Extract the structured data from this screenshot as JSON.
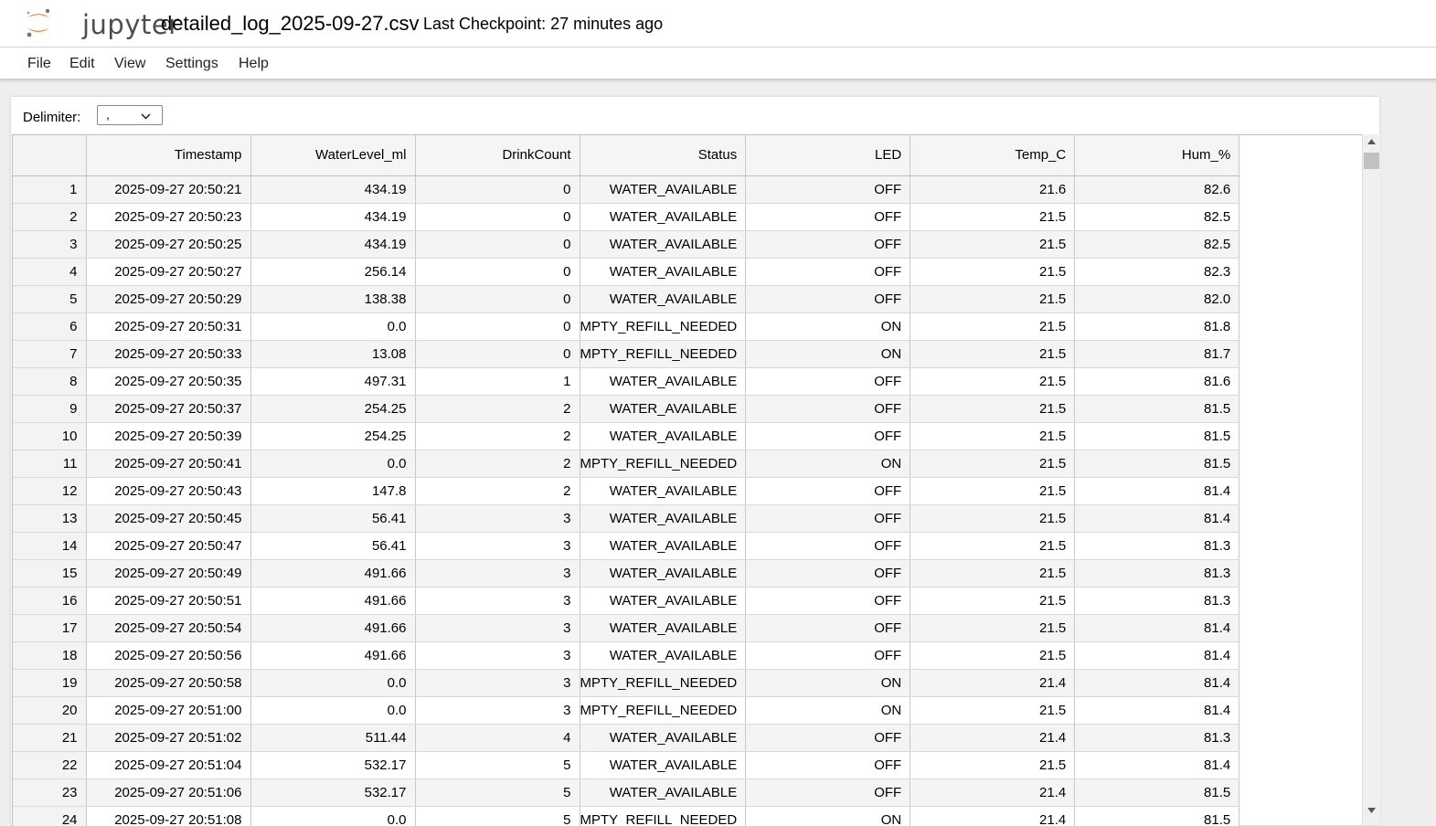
{
  "app": {
    "logo_text": "jupyter",
    "title": "detailed_log_2025-09-27.csv",
    "checkpoint": "Last Checkpoint: 27 minutes ago"
  },
  "menu": [
    "File",
    "Edit",
    "View",
    "Settings",
    "Help"
  ],
  "toolbar": {
    "delimiter_label": "Delimiter:",
    "delimiter_value": ","
  },
  "table": {
    "headers": [
      "Timestamp",
      "WaterLevel_ml",
      "DrinkCount",
      "Status",
      "LED",
      "Temp_C",
      "Hum_%"
    ],
    "rows": [
      [
        "1",
        "2025-09-27 20:50:21",
        "434.19",
        "0",
        "WATER_AVAILABLE",
        "OFF",
        "21.6",
        "82.6"
      ],
      [
        "2",
        "2025-09-27 20:50:23",
        "434.19",
        "0",
        "WATER_AVAILABLE",
        "OFF",
        "21.5",
        "82.5"
      ],
      [
        "3",
        "2025-09-27 20:50:25",
        "434.19",
        "0",
        "WATER_AVAILABLE",
        "OFF",
        "21.5",
        "82.5"
      ],
      [
        "4",
        "2025-09-27 20:50:27",
        "256.14",
        "0",
        "WATER_AVAILABLE",
        "OFF",
        "21.5",
        "82.3"
      ],
      [
        "5",
        "2025-09-27 20:50:29",
        "138.38",
        "0",
        "WATER_AVAILABLE",
        "OFF",
        "21.5",
        "82.0"
      ],
      [
        "6",
        "2025-09-27 20:50:31",
        "0.0",
        "0",
        "MPTY_REFILL_NEEDED",
        "ON",
        "21.5",
        "81.8"
      ],
      [
        "7",
        "2025-09-27 20:50:33",
        "13.08",
        "0",
        "MPTY_REFILL_NEEDED",
        "ON",
        "21.5",
        "81.7"
      ],
      [
        "8",
        "2025-09-27 20:50:35",
        "497.31",
        "1",
        "WATER_AVAILABLE",
        "OFF",
        "21.5",
        "81.6"
      ],
      [
        "9",
        "2025-09-27 20:50:37",
        "254.25",
        "2",
        "WATER_AVAILABLE",
        "OFF",
        "21.5",
        "81.5"
      ],
      [
        "10",
        "2025-09-27 20:50:39",
        "254.25",
        "2",
        "WATER_AVAILABLE",
        "OFF",
        "21.5",
        "81.5"
      ],
      [
        "11",
        "2025-09-27 20:50:41",
        "0.0",
        "2",
        "MPTY_REFILL_NEEDED",
        "ON",
        "21.5",
        "81.5"
      ],
      [
        "12",
        "2025-09-27 20:50:43",
        "147.8",
        "2",
        "WATER_AVAILABLE",
        "OFF",
        "21.5",
        "81.4"
      ],
      [
        "13",
        "2025-09-27 20:50:45",
        "56.41",
        "3",
        "WATER_AVAILABLE",
        "OFF",
        "21.5",
        "81.4"
      ],
      [
        "14",
        "2025-09-27 20:50:47",
        "56.41",
        "3",
        "WATER_AVAILABLE",
        "OFF",
        "21.5",
        "81.3"
      ],
      [
        "15",
        "2025-09-27 20:50:49",
        "491.66",
        "3",
        "WATER_AVAILABLE",
        "OFF",
        "21.5",
        "81.3"
      ],
      [
        "16",
        "2025-09-27 20:50:51",
        "491.66",
        "3",
        "WATER_AVAILABLE",
        "OFF",
        "21.5",
        "81.3"
      ],
      [
        "17",
        "2025-09-27 20:50:54",
        "491.66",
        "3",
        "WATER_AVAILABLE",
        "OFF",
        "21.5",
        "81.4"
      ],
      [
        "18",
        "2025-09-27 20:50:56",
        "491.66",
        "3",
        "WATER_AVAILABLE",
        "OFF",
        "21.5",
        "81.4"
      ],
      [
        "19",
        "2025-09-27 20:50:58",
        "0.0",
        "3",
        "MPTY_REFILL_NEEDED",
        "ON",
        "21.4",
        "81.4"
      ],
      [
        "20",
        "2025-09-27 20:51:00",
        "0.0",
        "3",
        "MPTY_REFILL_NEEDED",
        "ON",
        "21.5",
        "81.4"
      ],
      [
        "21",
        "2025-09-27 20:51:02",
        "511.44",
        "4",
        "WATER_AVAILABLE",
        "OFF",
        "21.4",
        "81.3"
      ],
      [
        "22",
        "2025-09-27 20:51:04",
        "532.17",
        "5",
        "WATER_AVAILABLE",
        "OFF",
        "21.5",
        "81.4"
      ],
      [
        "23",
        "2025-09-27 20:51:06",
        "532.17",
        "5",
        "WATER_AVAILABLE",
        "OFF",
        "21.4",
        "81.5"
      ],
      [
        "24",
        "2025-09-27 20:51:08",
        "0.0",
        "5",
        "MPTY_REFILL_NEEDED",
        "ON",
        "21.4",
        "81.5"
      ]
    ]
  },
  "colors": {
    "accent": "#f37726",
    "grid_line": "#c9c9c9"
  }
}
